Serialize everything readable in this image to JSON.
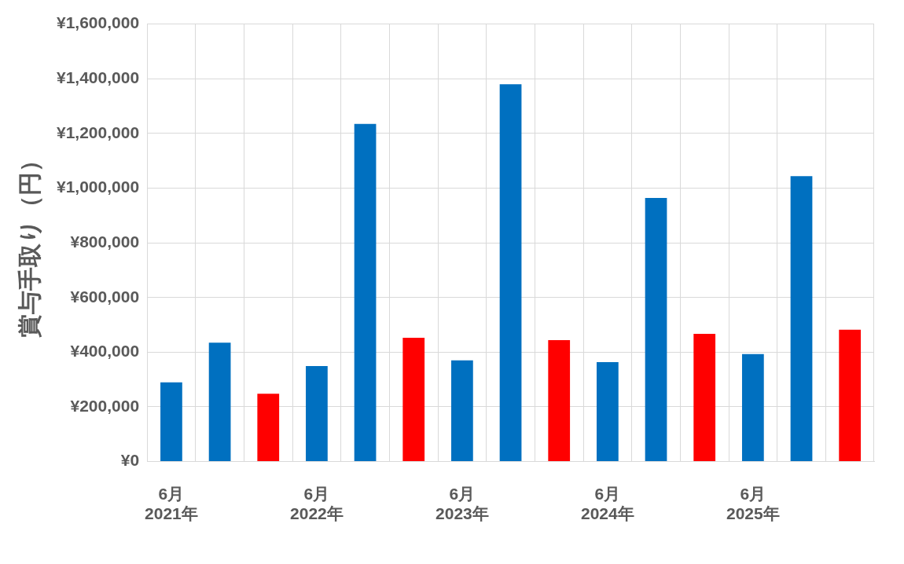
{
  "chart_data": {
    "type": "bar",
    "ylabel": "賞与手取り（円）",
    "categories": [
      "6月\n2021年",
      null,
      null,
      "6月\n2022年",
      null,
      null,
      "6月\n2023年",
      null,
      null,
      "6月\n2024年",
      null,
      null,
      "6月\n2025年",
      null,
      null
    ],
    "values": [
      290000,
      435000,
      248000,
      349000,
      1235000,
      453000,
      370000,
      1380000,
      444000,
      364000,
      964000,
      467000,
      393000,
      1044000,
      482000
    ],
    "colors": [
      "#0070c0",
      "#0070c0",
      "#ff0000",
      "#0070c0",
      "#0070c0",
      "#ff0000",
      "#0070c0",
      "#0070c0",
      "#ff0000",
      "#0070c0",
      "#0070c0",
      "#ff0000",
      "#0070c0",
      "#0070c0",
      "#ff0000"
    ],
    "ylim": [
      0,
      1600000
    ],
    "yticks": [
      {
        "value": 0,
        "label": "¥0"
      },
      {
        "value": 200000,
        "label": "¥200,000"
      },
      {
        "value": 400000,
        "label": "¥400,000"
      },
      {
        "value": 600000,
        "label": "¥600,000"
      },
      {
        "value": 800000,
        "label": "¥800,000"
      },
      {
        "value": 1000000,
        "label": "¥1,000,000"
      },
      {
        "value": 1200000,
        "label": "¥1,200,000"
      },
      {
        "value": 1400000,
        "label": "¥1,400,000"
      },
      {
        "value": 1600000,
        "label": "¥1,600,000"
      }
    ],
    "grid": true,
    "legend": false
  }
}
